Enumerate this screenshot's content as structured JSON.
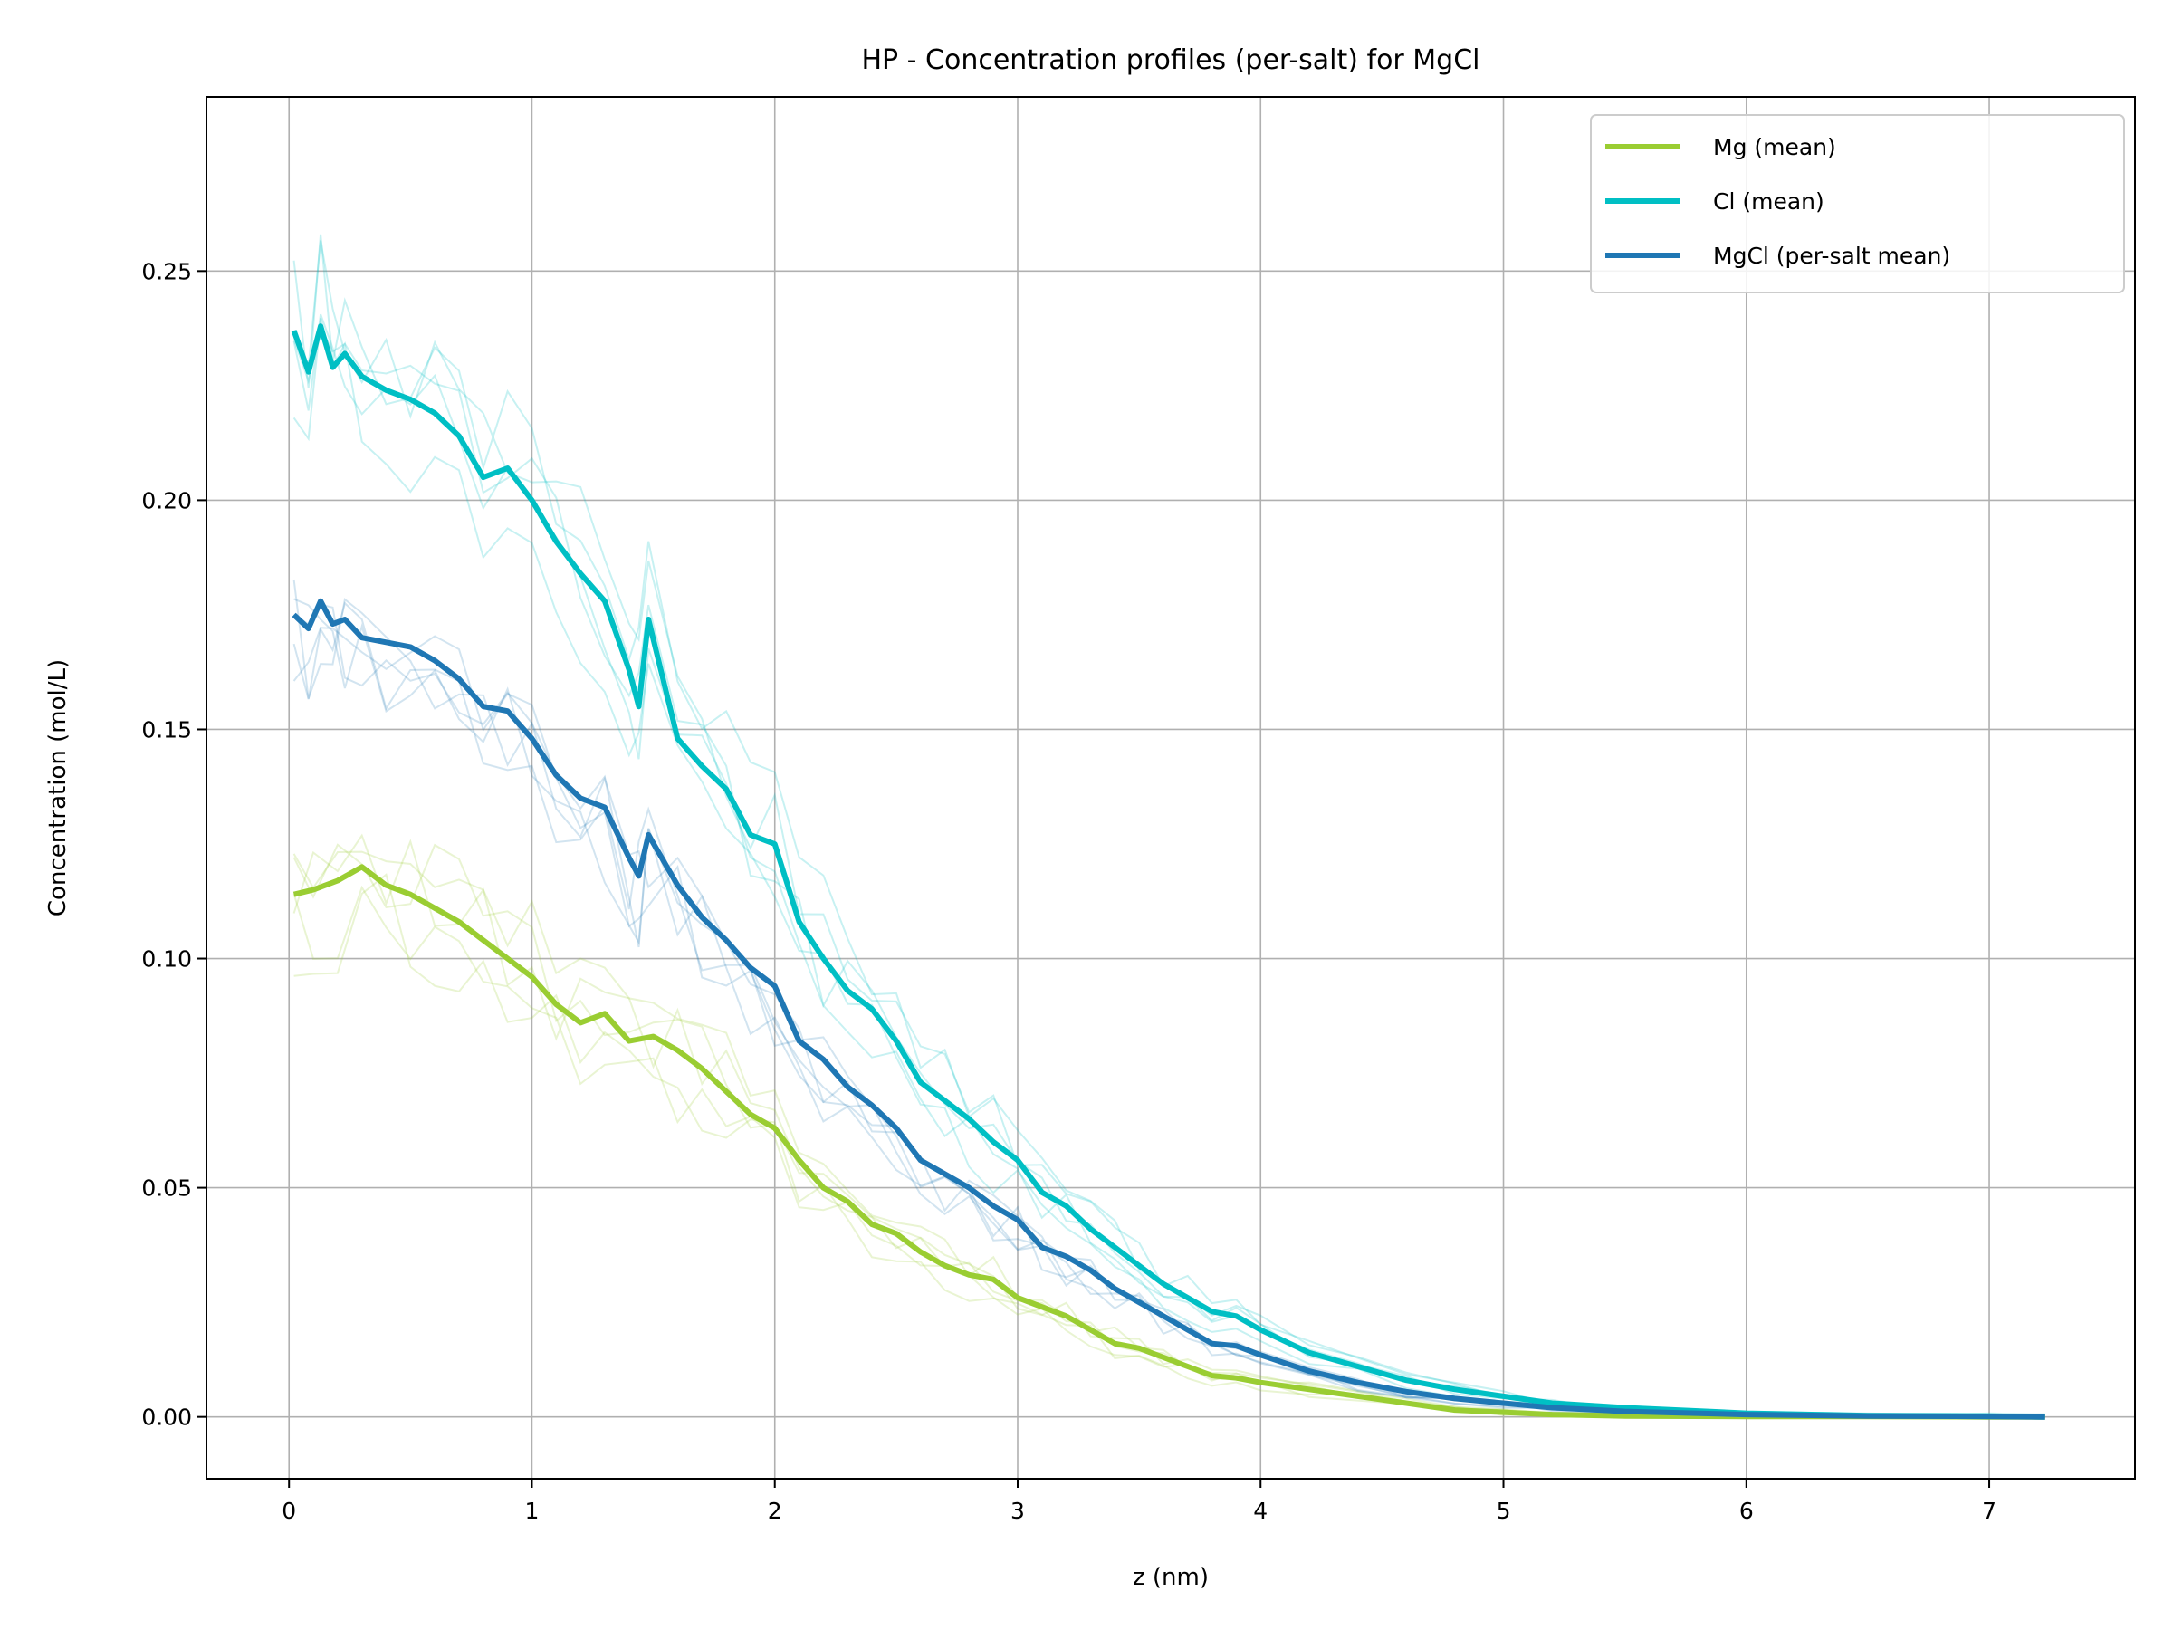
{
  "chart_data": {
    "type": "line",
    "title": "HP - Concentration profiles (per-salt) for MgCl",
    "xlabel": "z (nm)",
    "ylabel": "Concentration (mol/L)",
    "xlim": [
      -0.34,
      7.6
    ],
    "ylim": [
      -0.0135,
      0.288
    ],
    "xticks": [
      0,
      1,
      2,
      3,
      4,
      5,
      6,
      7
    ],
    "yticks": [
      0.0,
      0.05,
      0.1,
      0.15,
      0.2,
      0.25
    ],
    "ytick_labels": [
      "0.00",
      "0.05",
      "0.10",
      "0.15",
      "0.20",
      "0.25"
    ],
    "grid": true,
    "legend_position": "upper right",
    "colors": {
      "Mg": "#9acd32",
      "Cl": "#00bfc4",
      "MgCl": "#1f77b4"
    },
    "series": [
      {
        "name": "Mg (mean)",
        "color": "#9acd32",
        "x": [
          0.02,
          0.1,
          0.2,
          0.3,
          0.4,
          0.5,
          0.6,
          0.7,
          0.8,
          0.9,
          1.0,
          1.1,
          1.2,
          1.3,
          1.4,
          1.5,
          1.6,
          1.7,
          1.8,
          1.9,
          2.0,
          2.1,
          2.2,
          2.3,
          2.4,
          2.5,
          2.6,
          2.7,
          2.8,
          2.9,
          3.0,
          3.1,
          3.2,
          3.3,
          3.4,
          3.5,
          3.6,
          3.7,
          3.8,
          3.9,
          4.0,
          4.2,
          4.4,
          4.6,
          4.8,
          5.0,
          5.2,
          5.5,
          6.0,
          6.5,
          7.0,
          7.23
        ],
        "y": [
          0.114,
          0.115,
          0.117,
          0.12,
          0.116,
          0.114,
          0.111,
          0.108,
          0.104,
          0.1,
          0.096,
          0.09,
          0.086,
          0.088,
          0.082,
          0.083,
          0.08,
          0.076,
          0.071,
          0.066,
          0.063,
          0.056,
          0.05,
          0.047,
          0.042,
          0.04,
          0.036,
          0.033,
          0.031,
          0.03,
          0.026,
          0.024,
          0.022,
          0.019,
          0.016,
          0.015,
          0.013,
          0.011,
          0.009,
          0.0085,
          0.0075,
          0.006,
          0.0045,
          0.003,
          0.0015,
          0.001,
          0.0005,
          0.0002,
          0.0001,
          0.0001,
          0.0,
          0.0
        ]
      },
      {
        "name": "Cl (mean)",
        "color": "#00bfc4",
        "x": [
          0.02,
          0.08,
          0.13,
          0.18,
          0.23,
          0.3,
          0.4,
          0.5,
          0.6,
          0.7,
          0.8,
          0.9,
          1.0,
          1.1,
          1.2,
          1.3,
          1.4,
          1.44,
          1.48,
          1.6,
          1.7,
          1.8,
          1.9,
          2.0,
          2.1,
          2.2,
          2.3,
          2.4,
          2.5,
          2.6,
          2.7,
          2.8,
          2.9,
          3.0,
          3.1,
          3.2,
          3.3,
          3.4,
          3.5,
          3.6,
          3.7,
          3.8,
          3.9,
          4.0,
          4.2,
          4.4,
          4.6,
          4.8,
          5.0,
          5.2,
          5.5,
          6.0,
          6.5,
          7.0,
          7.23
        ],
        "y": [
          0.237,
          0.228,
          0.238,
          0.229,
          0.232,
          0.227,
          0.224,
          0.222,
          0.219,
          0.214,
          0.205,
          0.207,
          0.2,
          0.191,
          0.184,
          0.178,
          0.163,
          0.155,
          0.174,
          0.148,
          0.142,
          0.137,
          0.127,
          0.125,
          0.108,
          0.1,
          0.093,
          0.089,
          0.082,
          0.073,
          0.069,
          0.065,
          0.06,
          0.056,
          0.049,
          0.046,
          0.041,
          0.037,
          0.033,
          0.029,
          0.026,
          0.023,
          0.022,
          0.019,
          0.014,
          0.011,
          0.008,
          0.006,
          0.0045,
          0.003,
          0.002,
          0.0008,
          0.0003,
          0.0002,
          0.0
        ]
      },
      {
        "name": "MgCl (per-salt mean)",
        "color": "#1f77b4",
        "x": [
          0.02,
          0.08,
          0.13,
          0.18,
          0.23,
          0.3,
          0.4,
          0.5,
          0.6,
          0.7,
          0.8,
          0.9,
          1.0,
          1.1,
          1.2,
          1.3,
          1.4,
          1.44,
          1.48,
          1.6,
          1.7,
          1.8,
          1.9,
          2.0,
          2.1,
          2.2,
          2.3,
          2.4,
          2.5,
          2.6,
          2.7,
          2.8,
          2.9,
          3.0,
          3.1,
          3.2,
          3.3,
          3.4,
          3.5,
          3.6,
          3.7,
          3.8,
          3.9,
          4.0,
          4.2,
          4.4,
          4.6,
          4.8,
          5.0,
          5.2,
          5.5,
          6.0,
          6.5,
          7.0,
          7.23
        ],
        "y": [
          0.175,
          0.172,
          0.178,
          0.173,
          0.174,
          0.17,
          0.169,
          0.168,
          0.165,
          0.161,
          0.155,
          0.154,
          0.148,
          0.14,
          0.135,
          0.133,
          0.122,
          0.118,
          0.127,
          0.116,
          0.109,
          0.104,
          0.098,
          0.094,
          0.082,
          0.078,
          0.072,
          0.068,
          0.063,
          0.056,
          0.053,
          0.05,
          0.046,
          0.043,
          0.037,
          0.035,
          0.032,
          0.028,
          0.025,
          0.022,
          0.019,
          0.016,
          0.0155,
          0.0135,
          0.01,
          0.0075,
          0.0055,
          0.004,
          0.003,
          0.002,
          0.0012,
          0.0005,
          0.0002,
          0.0001,
          0.0
        ]
      }
    ],
    "legend": [
      "Mg (mean)",
      "Cl (mean)",
      "MgCl (per-salt mean)"
    ]
  }
}
